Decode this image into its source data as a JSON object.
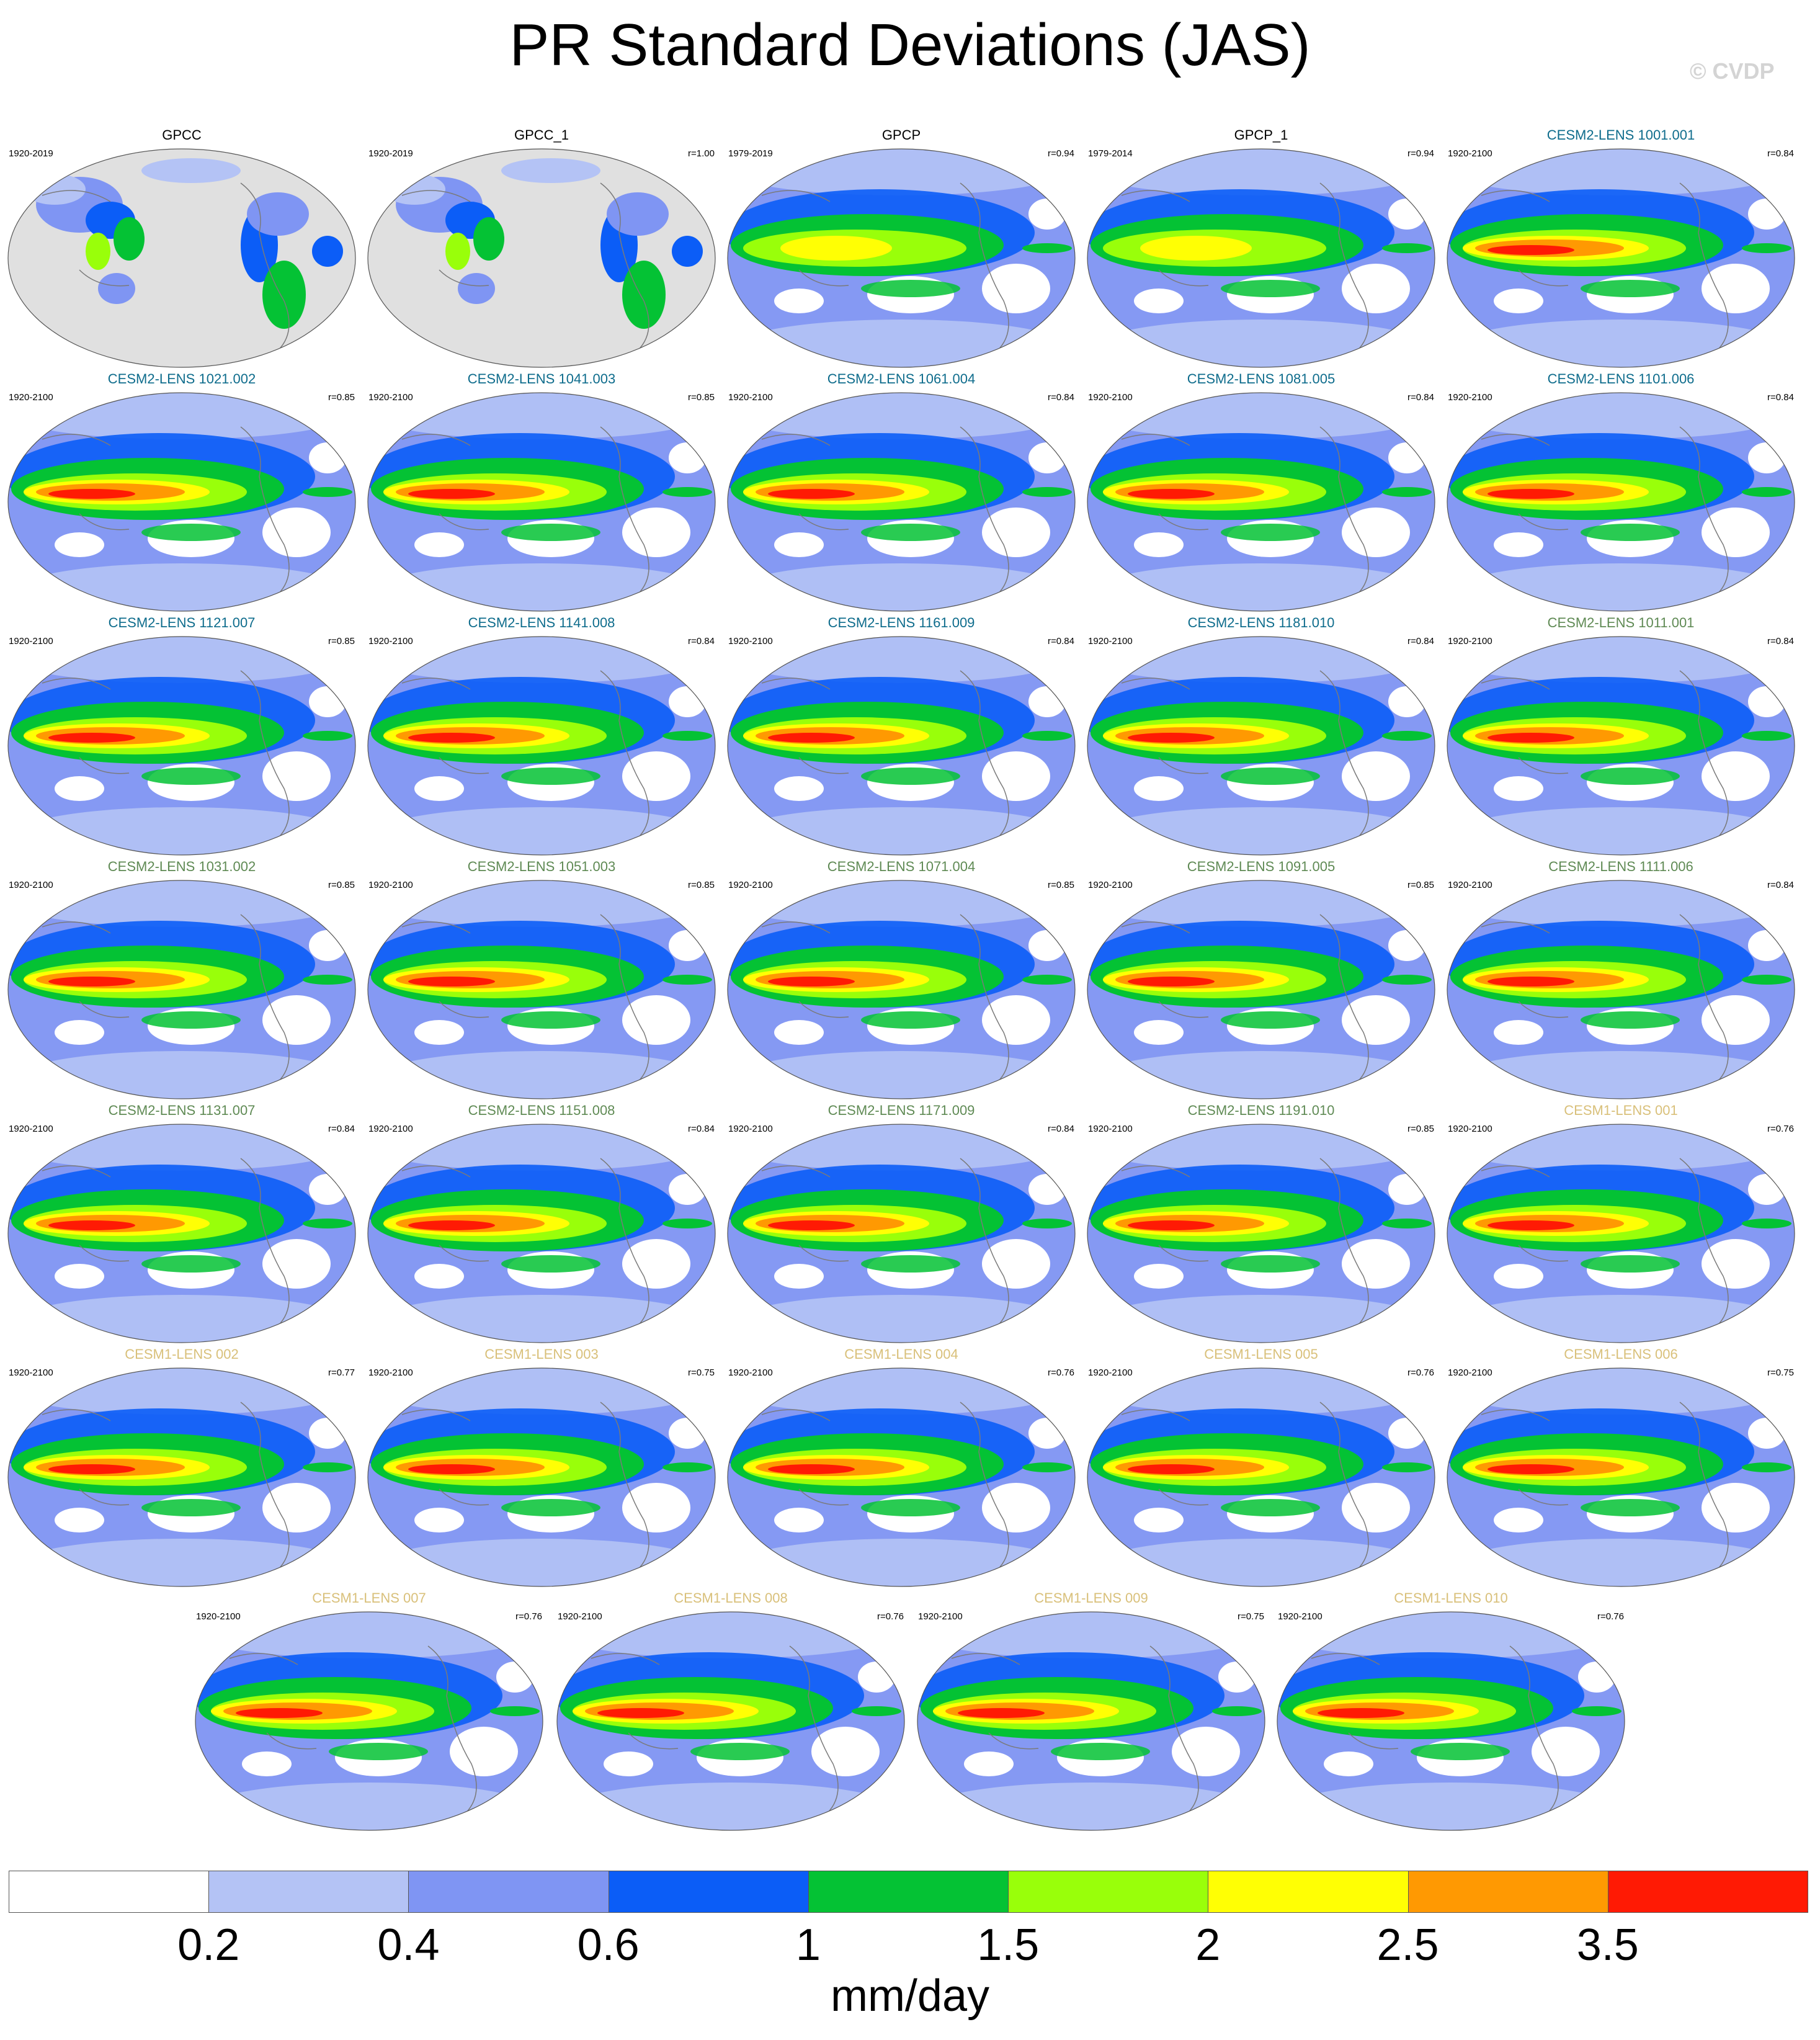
{
  "title": "PR Standard Deviations (JAS)",
  "copyright": "© CVDP",
  "colors": {
    "title_obs": "#000000",
    "title_cesm2_smbb": "#0e6c8c",
    "title_cesm2_cmip6": "#5f8a54",
    "title_cesm1": "#d9c07a",
    "land_missing": "#e0e0e0",
    "coastline": "#7a7a7a"
  },
  "panels": [
    {
      "title": "GPCC",
      "period": "1920-2019",
      "r": "",
      "group": "obs",
      "land_only": true
    },
    {
      "title": "GPCC_1",
      "period": "1920-2019",
      "r": "r=1.00",
      "group": "obs",
      "land_only": true
    },
    {
      "title": "GPCP",
      "period": "1979-2019",
      "r": "r=0.94",
      "group": "obs",
      "land_only": false
    },
    {
      "title": "GPCP_1",
      "period": "1979-2014",
      "r": "r=0.94",
      "group": "obs",
      "land_only": false
    },
    {
      "title": "CESM2-LENS 1001.001",
      "period": "1920-2100",
      "r": "r=0.84",
      "group": "cesm2_smbb"
    },
    {
      "title": "CESM2-LENS 1021.002",
      "period": "1920-2100",
      "r": "r=0.85",
      "group": "cesm2_smbb"
    },
    {
      "title": "CESM2-LENS 1041.003",
      "period": "1920-2100",
      "r": "r=0.85",
      "group": "cesm2_smbb"
    },
    {
      "title": "CESM2-LENS 1061.004",
      "period": "1920-2100",
      "r": "r=0.84",
      "group": "cesm2_smbb"
    },
    {
      "title": "CESM2-LENS 1081.005",
      "period": "1920-2100",
      "r": "r=0.84",
      "group": "cesm2_smbb"
    },
    {
      "title": "CESM2-LENS 1101.006",
      "period": "1920-2100",
      "r": "r=0.84",
      "group": "cesm2_smbb"
    },
    {
      "title": "CESM2-LENS 1121.007",
      "period": "1920-2100",
      "r": "r=0.85",
      "group": "cesm2_smbb"
    },
    {
      "title": "CESM2-LENS 1141.008",
      "period": "1920-2100",
      "r": "r=0.84",
      "group": "cesm2_smbb"
    },
    {
      "title": "CESM2-LENS 1161.009",
      "period": "1920-2100",
      "r": "r=0.84",
      "group": "cesm2_smbb"
    },
    {
      "title": "CESM2-LENS 1181.010",
      "period": "1920-2100",
      "r": "r=0.84",
      "group": "cesm2_smbb"
    },
    {
      "title": "CESM2-LENS 1011.001",
      "period": "1920-2100",
      "r": "r=0.84",
      "group": "cesm2_cmip6"
    },
    {
      "title": "CESM2-LENS 1031.002",
      "period": "1920-2100",
      "r": "r=0.85",
      "group": "cesm2_cmip6"
    },
    {
      "title": "CESM2-LENS 1051.003",
      "period": "1920-2100",
      "r": "r=0.85",
      "group": "cesm2_cmip6"
    },
    {
      "title": "CESM2-LENS 1071.004",
      "period": "1920-2100",
      "r": "r=0.85",
      "group": "cesm2_cmip6"
    },
    {
      "title": "CESM2-LENS 1091.005",
      "period": "1920-2100",
      "r": "r=0.85",
      "group": "cesm2_cmip6"
    },
    {
      "title": "CESM2-LENS 1111.006",
      "period": "1920-2100",
      "r": "r=0.84",
      "group": "cesm2_cmip6"
    },
    {
      "title": "CESM2-LENS 1131.007",
      "period": "1920-2100",
      "r": "r=0.84",
      "group": "cesm2_cmip6"
    },
    {
      "title": "CESM2-LENS 1151.008",
      "period": "1920-2100",
      "r": "r=0.84",
      "group": "cesm2_cmip6"
    },
    {
      "title": "CESM2-LENS 1171.009",
      "period": "1920-2100",
      "r": "r=0.84",
      "group": "cesm2_cmip6"
    },
    {
      "title": "CESM2-LENS 1191.010",
      "period": "1920-2100",
      "r": "r=0.85",
      "group": "cesm2_cmip6"
    },
    {
      "title": "CESM1-LENS 001",
      "period": "1920-2100",
      "r": "r=0.76",
      "group": "cesm1"
    },
    {
      "title": "CESM1-LENS 002",
      "period": "1920-2100",
      "r": "r=0.77",
      "group": "cesm1"
    },
    {
      "title": "CESM1-LENS 003",
      "period": "1920-2100",
      "r": "r=0.75",
      "group": "cesm1"
    },
    {
      "title": "CESM1-LENS 004",
      "period": "1920-2100",
      "r": "r=0.76",
      "group": "cesm1"
    },
    {
      "title": "CESM1-LENS 005",
      "period": "1920-2100",
      "r": "r=0.76",
      "group": "cesm1"
    },
    {
      "title": "CESM1-LENS 006",
      "period": "1920-2100",
      "r": "r=0.75",
      "group": "cesm1"
    },
    {
      "title": "CESM1-LENS 007",
      "period": "1920-2100",
      "r": "r=0.76",
      "group": "cesm1"
    },
    {
      "title": "CESM1-LENS 008",
      "period": "1920-2100",
      "r": "r=0.76",
      "group": "cesm1"
    },
    {
      "title": "CESM1-LENS 009",
      "period": "1920-2100",
      "r": "r=0.75",
      "group": "cesm1"
    },
    {
      "title": "CESM1-LENS 010",
      "period": "1920-2100",
      "r": "r=0.76",
      "group": "cesm1"
    }
  ],
  "colorbar": {
    "units": "mm/day",
    "labels": [
      "0.2",
      "0.4",
      "0.6",
      "1",
      "1.5",
      "2",
      "2.5",
      "3.5"
    ],
    "colors": [
      "#ffffff",
      "#b4c3f5",
      "#7f95f3",
      "#0b5df7",
      "#04c234",
      "#99ff0a",
      "#ffff04",
      "#ff9902",
      "#ff1a04"
    ]
  }
}
